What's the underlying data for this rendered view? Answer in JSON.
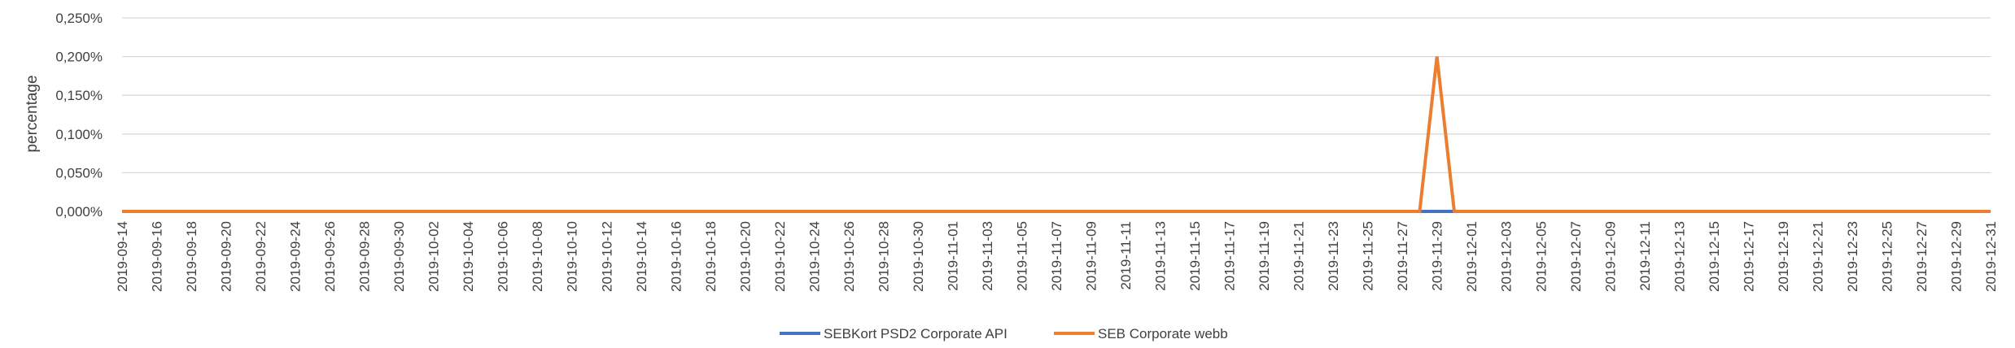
{
  "chart_data": {
    "type": "line",
    "title": "",
    "xlabel": "",
    "ylabel": "percentage",
    "ylim": [
      0,
      0.25
    ],
    "y_ticks": [
      "0,000%",
      "0,050%",
      "0,100%",
      "0,150%",
      "0,200%",
      "0,250%"
    ],
    "x_start": "2019-09-14",
    "x_end": "2019-12-31",
    "x_tick_labels": [
      "2019-09-14",
      "2019-09-16",
      "2019-09-18",
      "2019-09-20",
      "2019-09-22",
      "2019-09-24",
      "2019-09-26",
      "2019-09-28",
      "2019-09-30",
      "2019-10-02",
      "2019-10-04",
      "2019-10-06",
      "2019-10-08",
      "2019-10-10",
      "2019-10-12",
      "2019-10-14",
      "2019-10-16",
      "2019-10-18",
      "2019-10-20",
      "2019-10-22",
      "2019-10-24",
      "2019-10-26",
      "2019-10-28",
      "2019-10-30",
      "2019-11-01",
      "2019-11-03",
      "2019-11-05",
      "2019-11-07",
      "2019-11-09",
      "2019-11-11",
      "2019-11-13",
      "2019-11-15",
      "2019-11-17",
      "2019-11-19",
      "2019-11-21",
      "2019-11-23",
      "2019-11-25",
      "2019-11-27",
      "2019-11-29",
      "2019-12-01",
      "2019-12-03",
      "2019-12-05",
      "2019-12-07",
      "2019-12-09",
      "2019-12-11",
      "2019-12-13",
      "2019-12-15",
      "2019-12-17",
      "2019-12-19",
      "2019-12-21",
      "2019-12-23",
      "2019-12-25",
      "2019-12-27",
      "2019-12-29",
      "2019-12-31"
    ],
    "grid": true,
    "legend_position": "bottom",
    "series": [
      {
        "name": "SEBKort PSD2 Corporate API",
        "color": "#4472C4",
        "points": [
          {
            "x": "2019-11-28",
            "y": 0
          },
          {
            "x": "2019-11-29",
            "y": 0
          },
          {
            "x": "2019-11-30",
            "y": 0
          }
        ]
      },
      {
        "name": "SEB Corporate webb",
        "color": "#ED7D31",
        "points": [
          {
            "x": "2019-09-14",
            "y": 0
          },
          {
            "x": "2019-11-28",
            "y": 0
          },
          {
            "x": "2019-11-29",
            "y": 0.2
          },
          {
            "x": "2019-11-30",
            "y": 0
          },
          {
            "x": "2019-12-31",
            "y": 0
          }
        ]
      }
    ]
  }
}
